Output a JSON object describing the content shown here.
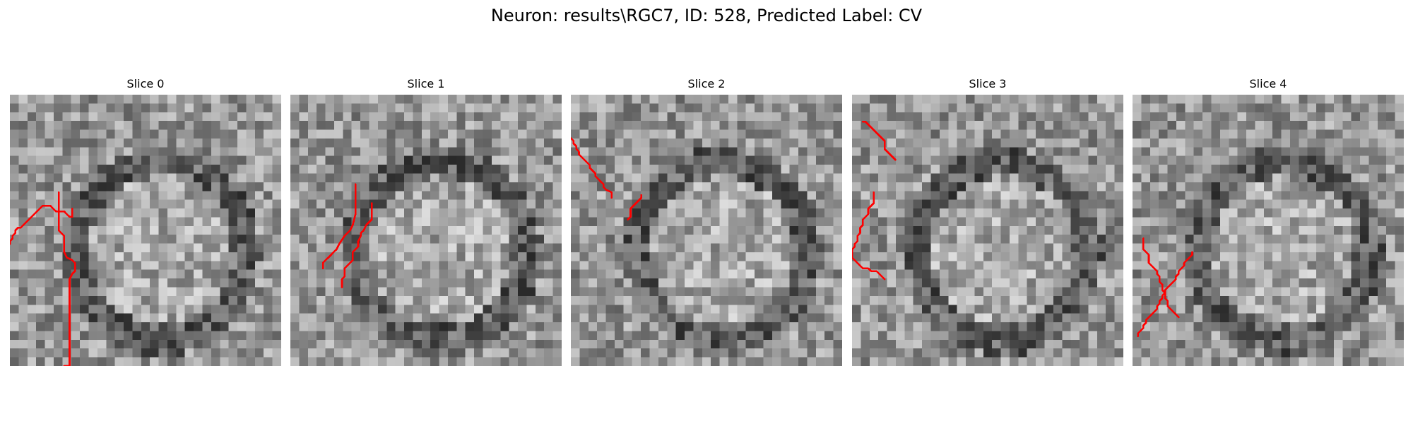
{
  "figure": {
    "title": "Neuron: results\\RGC7, ID: 528, Predicted Label: CV",
    "colormap": "grayscale",
    "contour_color": "#ff0000"
  },
  "panels": [
    {
      "title": "Slice 0",
      "contours": [
        [
          [
            23,
            42
          ],
          [
            23,
            45
          ],
          [
            22,
            45
          ],
          [
            21,
            44
          ],
          [
            20,
            43
          ],
          [
            17,
            43
          ],
          [
            16,
            42
          ],
          [
            15,
            41
          ],
          [
            12,
            41
          ],
          [
            11,
            42
          ],
          [
            10,
            43
          ],
          [
            9,
            44
          ],
          [
            8,
            45
          ],
          [
            7,
            46
          ],
          [
            6,
            47
          ],
          [
            5,
            48
          ],
          [
            4,
            49
          ],
          [
            3,
            49
          ],
          [
            2,
            50
          ],
          [
            2,
            51
          ],
          [
            1,
            52
          ],
          [
            1,
            53
          ],
          [
            0,
            54
          ],
          [
            0,
            55
          ]
        ],
        [
          [
            18,
            36
          ],
          [
            18,
            46
          ],
          [
            18,
            50
          ],
          [
            20,
            52
          ],
          [
            20,
            55
          ],
          [
            20,
            58
          ],
          [
            21,
            60
          ],
          [
            23,
            61
          ],
          [
            24,
            62
          ],
          [
            24,
            65
          ],
          [
            23,
            66
          ],
          [
            22,
            68
          ],
          [
            22,
            75
          ],
          [
            22,
            95
          ],
          [
            22,
            101
          ],
          [
            20,
            103
          ],
          [
            20,
            107
          ]
        ]
      ]
    },
    {
      "title": "Slice 1",
      "contours": [
        [
          [
            24,
            33
          ],
          [
            24,
            44
          ],
          [
            23,
            48
          ],
          [
            22,
            50
          ],
          [
            20,
            52
          ],
          [
            18,
            55
          ],
          [
            17,
            57
          ],
          [
            16,
            58
          ],
          [
            15,
            59
          ],
          [
            14,
            60
          ],
          [
            13,
            61
          ],
          [
            12,
            62
          ],
          [
            12,
            64
          ]
        ],
        [
          [
            30,
            40
          ],
          [
            30,
            46
          ],
          [
            28,
            48
          ],
          [
            27,
            50
          ],
          [
            26,
            51
          ],
          [
            26,
            52
          ],
          [
            25,
            54
          ],
          [
            25,
            56
          ],
          [
            24,
            57
          ],
          [
            23,
            58
          ],
          [
            23,
            61
          ],
          [
            22,
            62
          ],
          [
            21,
            63
          ],
          [
            20,
            64
          ],
          [
            20,
            67
          ],
          [
            19,
            68
          ],
          [
            19,
            71
          ]
        ]
      ]
    },
    {
      "title": "Slice 2",
      "contours": [
        [
          [
            15,
            38
          ],
          [
            15,
            36
          ],
          [
            13,
            35
          ],
          [
            12,
            34
          ],
          [
            12,
            33
          ],
          [
            11,
            32
          ],
          [
            10,
            31
          ],
          [
            9,
            30
          ],
          [
            9,
            29
          ],
          [
            8,
            28
          ],
          [
            7,
            27
          ],
          [
            7,
            26
          ],
          [
            6,
            25
          ],
          [
            5,
            24
          ],
          [
            4,
            23
          ],
          [
            3,
            22
          ],
          [
            3,
            21
          ],
          [
            2,
            20
          ],
          [
            2,
            19
          ],
          [
            1,
            18
          ],
          [
            1,
            17
          ],
          [
            0,
            16
          ]
        ],
        [
          [
            26,
            37
          ],
          [
            26,
            38
          ],
          [
            24,
            40
          ],
          [
            23,
            41
          ],
          [
            22,
            42
          ],
          [
            22,
            45
          ],
          [
            21,
            46
          ]
        ]
      ]
    },
    {
      "title": "Slice 3",
      "contours": [
        [
          [
            8,
            36
          ],
          [
            8,
            40
          ],
          [
            7,
            41
          ],
          [
            6,
            42
          ],
          [
            6,
            44
          ],
          [
            5,
            45
          ],
          [
            4,
            46
          ],
          [
            4,
            48
          ],
          [
            3,
            49
          ],
          [
            3,
            51
          ],
          [
            2,
            52
          ],
          [
            2,
            54
          ],
          [
            1,
            55
          ],
          [
            1,
            56
          ],
          [
            0,
            57
          ],
          [
            0,
            60
          ],
          [
            1,
            61
          ],
          [
            2,
            62
          ],
          [
            3,
            63
          ],
          [
            4,
            64
          ],
          [
            6,
            64
          ],
          [
            7,
            65
          ],
          [
            9,
            65
          ],
          [
            10,
            66
          ],
          [
            11,
            67
          ],
          [
            12,
            68
          ]
        ],
        [
          [
            4,
            10
          ],
          [
            5,
            10
          ],
          [
            6,
            11
          ],
          [
            7,
            12
          ],
          [
            8,
            13
          ],
          [
            9,
            14
          ],
          [
            10,
            15
          ],
          [
            11,
            16
          ],
          [
            12,
            17
          ],
          [
            12,
            20
          ],
          [
            13,
            21
          ],
          [
            14,
            22
          ],
          [
            15,
            23
          ],
          [
            16,
            24
          ]
        ]
      ]
    },
    {
      "title": "Slice 4",
      "contours": [
        [
          [
            4,
            53
          ],
          [
            4,
            57
          ],
          [
            5,
            58
          ],
          [
            6,
            59
          ],
          [
            6,
            62
          ],
          [
            7,
            63
          ],
          [
            8,
            64
          ],
          [
            9,
            65
          ],
          [
            9,
            66
          ],
          [
            10,
            67
          ],
          [
            10,
            69
          ],
          [
            11,
            70
          ],
          [
            11,
            72
          ],
          [
            12,
            73
          ],
          [
            12,
            75
          ],
          [
            13,
            76
          ],
          [
            13,
            78
          ],
          [
            14,
            79
          ],
          [
            15,
            80
          ],
          [
            16,
            81
          ],
          [
            17,
            82
          ]
        ],
        [
          [
            22,
            58
          ],
          [
            22,
            59
          ],
          [
            21,
            60
          ],
          [
            20,
            61
          ],
          [
            19,
            62
          ],
          [
            19,
            63
          ],
          [
            18,
            64
          ],
          [
            17,
            65
          ],
          [
            17,
            66
          ],
          [
            16,
            67
          ],
          [
            16,
            68
          ],
          [
            15,
            69
          ],
          [
            14,
            70
          ],
          [
            13,
            71
          ],
          [
            12,
            72
          ],
          [
            12,
            73
          ],
          [
            11,
            74
          ],
          [
            11,
            75
          ],
          [
            10,
            76
          ],
          [
            10,
            77
          ],
          [
            9,
            78
          ],
          [
            9,
            79
          ],
          [
            8,
            80
          ],
          [
            7,
            81
          ],
          [
            6,
            82
          ],
          [
            5,
            83
          ],
          [
            5,
            84
          ],
          [
            4,
            85
          ],
          [
            4,
            86
          ],
          [
            3,
            87
          ],
          [
            2,
            88
          ],
          [
            2,
            89
          ]
        ]
      ]
    }
  ]
}
